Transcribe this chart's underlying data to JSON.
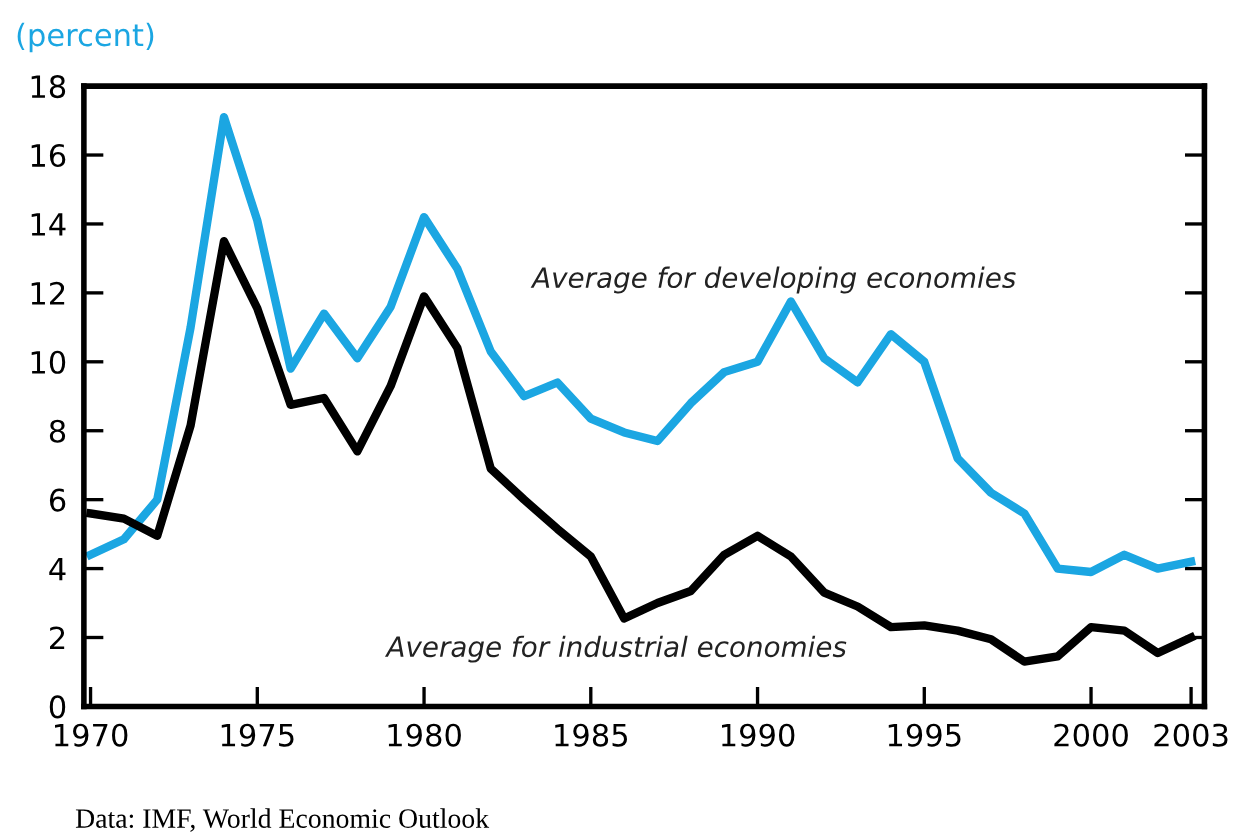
{
  "chart_data": {
    "type": "line",
    "ylabel": "(percent)",
    "x": [
      1970,
      1971,
      1972,
      1973,
      1974,
      1975,
      1976,
      1977,
      1978,
      1979,
      1980,
      1981,
      1982,
      1983,
      1984,
      1985,
      1986,
      1987,
      1988,
      1989,
      1990,
      1991,
      1992,
      1993,
      1994,
      1995,
      1996,
      1997,
      1998,
      1999,
      2000,
      2001,
      2002,
      2003
    ],
    "series": [
      {
        "name": "Average for developing economies",
        "color": "#1ba6e2",
        "values": [
          4.4,
          4.85,
          6.0,
          11.0,
          17.1,
          14.1,
          9.8,
          11.4,
          10.1,
          11.6,
          14.2,
          12.7,
          10.3,
          9.0,
          9.4,
          8.35,
          7.95,
          7.7,
          8.8,
          9.7,
          10.0,
          11.75,
          10.1,
          9.4,
          10.8,
          10.0,
          7.2,
          6.2,
          5.6,
          4.0,
          3.9,
          4.4,
          4.0,
          4.2
        ]
      },
      {
        "name": "Average for industrial economies",
        "color": "#000000",
        "values": [
          5.6,
          5.45,
          4.95,
          8.15,
          13.5,
          11.55,
          8.75,
          8.95,
          7.4,
          9.3,
          11.9,
          10.4,
          6.9,
          6.0,
          5.15,
          4.35,
          2.55,
          3.0,
          3.35,
          4.4,
          4.95,
          4.35,
          3.3,
          2.9,
          2.3,
          2.35,
          2.2,
          1.95,
          1.3,
          1.45,
          2.3,
          2.2,
          1.55,
          2.0
        ]
      }
    ],
    "xlim": [
      1969.8,
      2003.4
    ],
    "xticks": [
      1970,
      1975,
      1980,
      1985,
      1990,
      1995,
      2000,
      2003
    ],
    "ylim": [
      0,
      18
    ],
    "yticks": [
      0,
      2,
      4,
      6,
      8,
      10,
      12,
      14,
      16,
      18
    ],
    "grid": false,
    "legend": false,
    "marker": "none",
    "line_style": "solid",
    "annotations": [
      "Data: IMF, World Economic Outlook"
    ]
  }
}
